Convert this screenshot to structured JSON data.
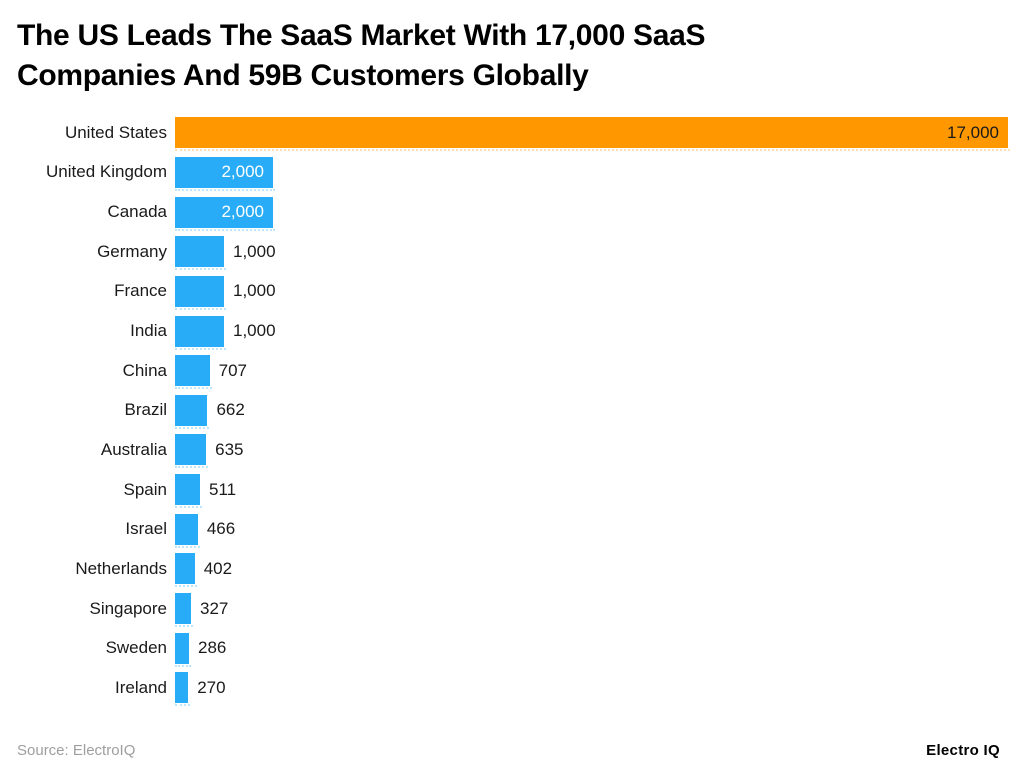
{
  "header": {
    "title_line1": "The US Leads The SaaS Market With 17,000 SaaS",
    "title_line2": "Companies And 59B Customers Globally"
  },
  "footer": {
    "source": "Source: ElectroIQ",
    "brand": "Electro IQ"
  },
  "colors": {
    "us_bar": "#FF9800",
    "default_bar": "#29ACF7",
    "inside_label_light": "#FFFFFF",
    "inside_label_dark": "#1A1A1A",
    "outside_label": "#1A1A1A",
    "title_text": "#000000",
    "source_text": "#9E9E9E",
    "background": "#FFFFFF"
  },
  "chart_data": {
    "type": "bar",
    "orientation": "horizontal",
    "title": "The US Leads The SaaS Market With 17,000 SaaS Companies And 59B Customers Globally",
    "categories": [
      "United States",
      "United Kingdom",
      "Canada",
      "Germany",
      "France",
      "India",
      "China",
      "Brazil",
      "Australia",
      "Spain",
      "Israel",
      "Netherlands",
      "Singapore",
      "Sweden",
      "Ireland"
    ],
    "values": [
      17000,
      2000,
      2000,
      1000,
      1000,
      1000,
      707,
      662,
      635,
      511,
      466,
      402,
      327,
      286,
      270
    ],
    "value_labels": [
      "17,000",
      "2,000",
      "2,000",
      "1,000",
      "1,000",
      "1,000",
      "707",
      "662",
      "635",
      "511",
      "466",
      "402",
      "327",
      "286",
      "270"
    ],
    "xlabel": "",
    "ylabel": "",
    "xlim": [
      0,
      17000
    ],
    "grid": false,
    "legend": "none",
    "highlight_category": "United States",
    "source": "Source: ElectroIQ"
  },
  "rows": [
    {
      "label": "United States",
      "value": 17000,
      "value_label": "17,000",
      "color_key": "us_bar",
      "label_position": "inside",
      "label_color_key": "inside_label_dark"
    },
    {
      "label": "United Kingdom",
      "value": 2000,
      "value_label": "2,000",
      "color_key": "default_bar",
      "label_position": "inside",
      "label_color_key": "inside_label_light"
    },
    {
      "label": "Canada",
      "value": 2000,
      "value_label": "2,000",
      "color_key": "default_bar",
      "label_position": "inside",
      "label_color_key": "inside_label_light"
    },
    {
      "label": "Germany",
      "value": 1000,
      "value_label": "1,000",
      "color_key": "default_bar",
      "label_position": "outside",
      "label_color_key": "outside_label"
    },
    {
      "label": "France",
      "value": 1000,
      "value_label": "1,000",
      "color_key": "default_bar",
      "label_position": "outside",
      "label_color_key": "outside_label"
    },
    {
      "label": "India",
      "value": 1000,
      "value_label": "1,000",
      "color_key": "default_bar",
      "label_position": "outside",
      "label_color_key": "outside_label"
    },
    {
      "label": "China",
      "value": 707,
      "value_label": "707",
      "color_key": "default_bar",
      "label_position": "outside",
      "label_color_key": "outside_label"
    },
    {
      "label": "Brazil",
      "value": 662,
      "value_label": "662",
      "color_key": "default_bar",
      "label_position": "outside",
      "label_color_key": "outside_label"
    },
    {
      "label": "Australia",
      "value": 635,
      "value_label": "635",
      "color_key": "default_bar",
      "label_position": "outside",
      "label_color_key": "outside_label"
    },
    {
      "label": "Spain",
      "value": 511,
      "value_label": "511",
      "color_key": "default_bar",
      "label_position": "outside",
      "label_color_key": "outside_label"
    },
    {
      "label": "Israel",
      "value": 466,
      "value_label": "466",
      "color_key": "default_bar",
      "label_position": "outside",
      "label_color_key": "outside_label"
    },
    {
      "label": "Netherlands",
      "value": 402,
      "value_label": "402",
      "color_key": "default_bar",
      "label_position": "outside",
      "label_color_key": "outside_label"
    },
    {
      "label": "Singapore",
      "value": 327,
      "value_label": "327",
      "color_key": "default_bar",
      "label_position": "outside",
      "label_color_key": "outside_label"
    },
    {
      "label": "Sweden",
      "value": 286,
      "value_label": "286",
      "color_key": "default_bar",
      "label_position": "outside",
      "label_color_key": "outside_label"
    },
    {
      "label": "Ireland",
      "value": 270,
      "value_label": "270",
      "color_key": "default_bar",
      "label_position": "outside",
      "label_color_key": "outside_label"
    }
  ]
}
